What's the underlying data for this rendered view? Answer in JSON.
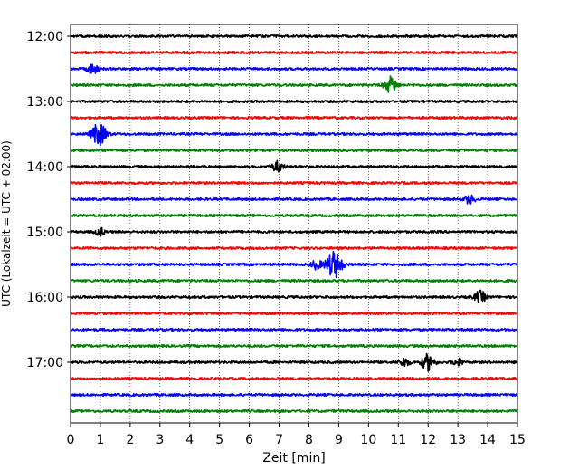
{
  "chart_data": {
    "type": "line",
    "title": "",
    "xlabel": "Zeit  [min]",
    "ylabel": "UTC (Lokalzeit = UTC + 02:00)",
    "xlim": [
      0,
      15
    ],
    "xticks": [
      0,
      1,
      2,
      3,
      4,
      5,
      6,
      7,
      8,
      9,
      10,
      11,
      12,
      13,
      14,
      15
    ],
    "yticks": [
      {
        "label": "12:00",
        "trace": 0
      },
      {
        "label": "13:00",
        "trace": 4
      },
      {
        "label": "14:00",
        "trace": 8
      },
      {
        "label": "15:00",
        "trace": 12
      },
      {
        "label": "16:00",
        "trace": 16
      },
      {
        "label": "17:00",
        "trace": 20
      }
    ],
    "grid": "vertical dotted",
    "color_cycle": [
      "#000000",
      "#ff0000",
      "#0000ff",
      "#008000"
    ],
    "traces": [
      {
        "start": "12:00",
        "events": []
      },
      {
        "start": "12:15",
        "events": []
      },
      {
        "start": "12:30",
        "events": [
          {
            "t": 0.75,
            "amp": 0.35
          }
        ]
      },
      {
        "start": "12:45",
        "events": [
          {
            "t": 10.75,
            "amp": 0.55
          }
        ]
      },
      {
        "start": "13:00",
        "events": []
      },
      {
        "start": "13:15",
        "events": []
      },
      {
        "start": "13:30",
        "events": [
          {
            "t": 0.95,
            "amp": 0.75
          }
        ]
      },
      {
        "start": "13:45",
        "events": []
      },
      {
        "start": "14:00",
        "events": [
          {
            "t": 6.95,
            "amp": 0.35
          }
        ]
      },
      {
        "start": "14:15",
        "events": []
      },
      {
        "start": "14:30",
        "events": [
          {
            "t": 13.4,
            "amp": 0.3
          }
        ]
      },
      {
        "start": "14:45",
        "events": []
      },
      {
        "start": "15:00",
        "events": [
          {
            "t": 1.0,
            "amp": 0.25
          }
        ]
      },
      {
        "start": "15:15",
        "events": []
      },
      {
        "start": "15:30",
        "events": [
          {
            "t": 8.25,
            "amp": 0.3
          },
          {
            "t": 8.85,
            "amp": 0.9
          }
        ]
      },
      {
        "start": "15:45",
        "events": []
      },
      {
        "start": "16:00",
        "events": [
          {
            "t": 13.75,
            "amp": 0.4
          }
        ]
      },
      {
        "start": "16:15",
        "events": []
      },
      {
        "start": "16:30",
        "events": []
      },
      {
        "start": "16:45",
        "events": []
      },
      {
        "start": "17:00",
        "events": [
          {
            "t": 11.2,
            "amp": 0.3
          },
          {
            "t": 12.0,
            "amp": 0.55
          },
          {
            "t": 13.0,
            "amp": 0.25
          }
        ]
      },
      {
        "start": "17:15",
        "events": []
      },
      {
        "start": "17:30",
        "events": []
      },
      {
        "start": "17:45",
        "events": []
      }
    ]
  }
}
